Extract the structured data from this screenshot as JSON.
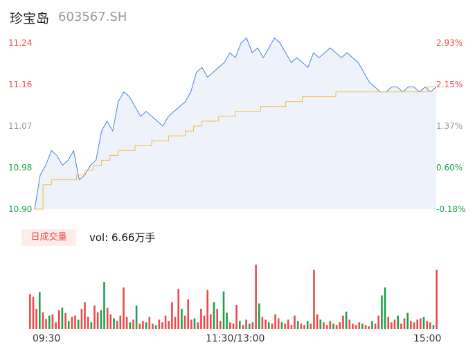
{
  "header": {
    "name": "珍宝岛",
    "code": "603567.SH"
  },
  "colors": {
    "up": "#e84b4b",
    "down": "#1aa34a",
    "neutral": "#999999",
    "price": "#4a7fe0",
    "avg": "#f5b841",
    "fill": "#eef3fb"
  },
  "volume": {
    "badge": "日成交量",
    "text": "vol: 6.66万手"
  },
  "chart_data": {
    "type": "line",
    "series": [
      {
        "values": [
          10.9,
          10.97,
          10.99,
          11.02,
          11.01,
          10.99,
          11.0,
          11.02,
          10.96,
          10.97,
          10.99,
          11.0,
          11.06,
          11.08,
          11.06,
          11.12,
          11.14,
          11.13,
          11.11,
          11.09,
          11.1,
          11.09,
          11.08,
          11.07,
          11.09,
          11.1,
          11.11,
          11.12,
          11.14,
          11.18,
          11.19,
          11.17,
          11.18,
          11.19,
          11.2,
          11.22,
          11.21,
          11.24,
          11.25,
          11.22,
          11.23,
          11.21,
          11.23,
          11.25,
          11.24,
          11.22,
          11.2,
          11.21,
          11.2,
          11.19,
          11.22,
          11.21,
          11.22,
          11.23,
          11.22,
          11.21,
          11.22,
          11.21,
          11.2,
          11.18,
          11.16,
          11.15,
          11.14,
          11.14,
          11.15,
          11.15,
          11.14,
          11.15,
          11.15,
          11.14,
          11.15,
          11.14,
          11.15
        ]
      },
      {
        "values": [
          10.9,
          10.95,
          10.96,
          10.96,
          10.96,
          10.97,
          10.98,
          10.99,
          11.0,
          11.01,
          11.02,
          11.02,
          11.03,
          11.03,
          11.04,
          11.04,
          11.05,
          11.05,
          11.06,
          11.07,
          11.08,
          11.08,
          11.09,
          11.09,
          11.1,
          11.1,
          11.1,
          11.11,
          11.11,
          11.11,
          11.12,
          11.12,
          11.13,
          11.13,
          11.13,
          11.13,
          11.14,
          11.14,
          11.14,
          11.14,
          11.14,
          11.14,
          11.14,
          11.14,
          11.14,
          11.14,
          11.14,
          11.15,
          11.15
        ]
      }
    ],
    "ylim": [
      10.9,
      11.24
    ],
    "y_ticks": [
      {
        "price": "11.24",
        "pct": "2.93%",
        "dir": "up"
      },
      {
        "price": "11.16",
        "pct": "2.15%",
        "dir": "up"
      },
      {
        "price": "11.07",
        "pct": "1.37%",
        "dir": "neutral"
      },
      {
        "price": "10.98",
        "pct": "0.60%",
        "dir": "down"
      },
      {
        "price": "10.90",
        "pct": "-0.18%",
        "dir": "down"
      }
    ],
    "x_ticks": [
      "09:30",
      "11:30/13:00",
      "15:00"
    ],
    "volume_bars": [
      {
        "h": 0.52,
        "d": "up"
      },
      {
        "h": 0.48,
        "d": "up"
      },
      {
        "h": 0.3,
        "d": "up"
      },
      {
        "h": 0.55,
        "d": "down"
      },
      {
        "h": 0.25,
        "d": "up"
      },
      {
        "h": 0.15,
        "d": "up"
      },
      {
        "h": 0.2,
        "d": "down"
      },
      {
        "h": 0.22,
        "d": "up"
      },
      {
        "h": 0.1,
        "d": "up"
      },
      {
        "h": 0.28,
        "d": "up"
      },
      {
        "h": 0.32,
        "d": "down"
      },
      {
        "h": 0.24,
        "d": "up"
      },
      {
        "h": 0.12,
        "d": "down"
      },
      {
        "h": 0.18,
        "d": "up"
      },
      {
        "h": 0.2,
        "d": "up"
      },
      {
        "h": 0.14,
        "d": "down"
      },
      {
        "h": 0.3,
        "d": "up"
      },
      {
        "h": 0.4,
        "d": "up"
      },
      {
        "h": 0.18,
        "d": "up"
      },
      {
        "h": 0.1,
        "d": "down"
      },
      {
        "h": 0.35,
        "d": "up"
      },
      {
        "h": 0.25,
        "d": "up"
      },
      {
        "h": 0.28,
        "d": "down"
      },
      {
        "h": 0.7,
        "d": "down"
      },
      {
        "h": 0.32,
        "d": "up"
      },
      {
        "h": 0.22,
        "d": "up"
      },
      {
        "h": 0.16,
        "d": "down"
      },
      {
        "h": 0.12,
        "d": "up"
      },
      {
        "h": 0.2,
        "d": "up"
      },
      {
        "h": 0.62,
        "d": "up"
      },
      {
        "h": 0.18,
        "d": "up"
      },
      {
        "h": 0.1,
        "d": "down"
      },
      {
        "h": 0.14,
        "d": "up"
      },
      {
        "h": 0.35,
        "d": "down"
      },
      {
        "h": 0.08,
        "d": "up"
      },
      {
        "h": 0.12,
        "d": "up"
      },
      {
        "h": 0.1,
        "d": "down"
      },
      {
        "h": 0.18,
        "d": "up"
      },
      {
        "h": 0.08,
        "d": "up"
      },
      {
        "h": 0.06,
        "d": "down"
      },
      {
        "h": 0.14,
        "d": "up"
      },
      {
        "h": 0.1,
        "d": "up"
      },
      {
        "h": 0.2,
        "d": "up"
      },
      {
        "h": 0.12,
        "d": "up"
      },
      {
        "h": 0.4,
        "d": "up"
      },
      {
        "h": 0.18,
        "d": "up"
      },
      {
        "h": 0.6,
        "d": "up"
      },
      {
        "h": 0.3,
        "d": "down"
      },
      {
        "h": 0.2,
        "d": "up"
      },
      {
        "h": 0.44,
        "d": "up"
      },
      {
        "h": 0.14,
        "d": "up"
      },
      {
        "h": 0.16,
        "d": "down"
      },
      {
        "h": 0.1,
        "d": "up"
      },
      {
        "h": 0.3,
        "d": "up"
      },
      {
        "h": 0.2,
        "d": "up"
      },
      {
        "h": 0.58,
        "d": "up"
      },
      {
        "h": 0.22,
        "d": "up"
      },
      {
        "h": 0.4,
        "d": "down"
      },
      {
        "h": 0.3,
        "d": "up"
      },
      {
        "h": 0.12,
        "d": "up"
      },
      {
        "h": 0.56,
        "d": "down"
      },
      {
        "h": 0.24,
        "d": "down"
      },
      {
        "h": 0.1,
        "d": "up"
      },
      {
        "h": 0.08,
        "d": "up"
      },
      {
        "h": 0.36,
        "d": "up"
      },
      {
        "h": 0.12,
        "d": "down"
      },
      {
        "h": 0.06,
        "d": "up"
      },
      {
        "h": 0.14,
        "d": "up"
      },
      {
        "h": 0.08,
        "d": "down"
      },
      {
        "h": 0.1,
        "d": "up"
      },
      {
        "h": 0.96,
        "d": "up"
      },
      {
        "h": 0.38,
        "d": "down"
      },
      {
        "h": 0.18,
        "d": "up"
      },
      {
        "h": 0.14,
        "d": "up"
      },
      {
        "h": 0.1,
        "d": "down"
      },
      {
        "h": 0.08,
        "d": "up"
      },
      {
        "h": 0.22,
        "d": "up"
      },
      {
        "h": 0.16,
        "d": "up"
      },
      {
        "h": 0.1,
        "d": "down"
      },
      {
        "h": 0.08,
        "d": "up"
      },
      {
        "h": 0.14,
        "d": "up"
      },
      {
        "h": 0.06,
        "d": "up"
      },
      {
        "h": 0.2,
        "d": "up"
      },
      {
        "h": 0.12,
        "d": "down"
      },
      {
        "h": 0.08,
        "d": "up"
      },
      {
        "h": 0.06,
        "d": "up"
      },
      {
        "h": 0.12,
        "d": "down"
      },
      {
        "h": 0.08,
        "d": "up"
      },
      {
        "h": 0.88,
        "d": "up"
      },
      {
        "h": 0.22,
        "d": "up"
      },
      {
        "h": 0.14,
        "d": "down"
      },
      {
        "h": 0.1,
        "d": "up"
      },
      {
        "h": 0.06,
        "d": "up"
      },
      {
        "h": 0.12,
        "d": "up"
      },
      {
        "h": 0.08,
        "d": "down"
      },
      {
        "h": 0.06,
        "d": "up"
      },
      {
        "h": 0.1,
        "d": "up"
      },
      {
        "h": 0.2,
        "d": "up"
      },
      {
        "h": 0.26,
        "d": "down"
      },
      {
        "h": 0.14,
        "d": "up"
      },
      {
        "h": 0.08,
        "d": "up"
      },
      {
        "h": 0.06,
        "d": "up"
      },
      {
        "h": 0.1,
        "d": "up"
      },
      {
        "h": 0.08,
        "d": "down"
      },
      {
        "h": 0.06,
        "d": "up"
      },
      {
        "h": 0.04,
        "d": "up"
      },
      {
        "h": 0.12,
        "d": "down"
      },
      {
        "h": 0.08,
        "d": "up"
      },
      {
        "h": 0.2,
        "d": "up"
      },
      {
        "h": 0.5,
        "d": "down"
      },
      {
        "h": 0.62,
        "d": "down"
      },
      {
        "h": 0.18,
        "d": "up"
      },
      {
        "h": 0.1,
        "d": "up"
      },
      {
        "h": 0.14,
        "d": "up"
      },
      {
        "h": 0.2,
        "d": "down"
      },
      {
        "h": 0.08,
        "d": "up"
      },
      {
        "h": 0.16,
        "d": "up"
      },
      {
        "h": 0.24,
        "d": "down"
      },
      {
        "h": 0.12,
        "d": "up"
      },
      {
        "h": 0.1,
        "d": "up"
      },
      {
        "h": 0.14,
        "d": "up"
      },
      {
        "h": 0.16,
        "d": "up"
      },
      {
        "h": 0.18,
        "d": "down"
      },
      {
        "h": 0.12,
        "d": "up"
      },
      {
        "h": 0.1,
        "d": "up"
      },
      {
        "h": 0.06,
        "d": "down"
      },
      {
        "h": 0.88,
        "d": "up"
      }
    ]
  }
}
